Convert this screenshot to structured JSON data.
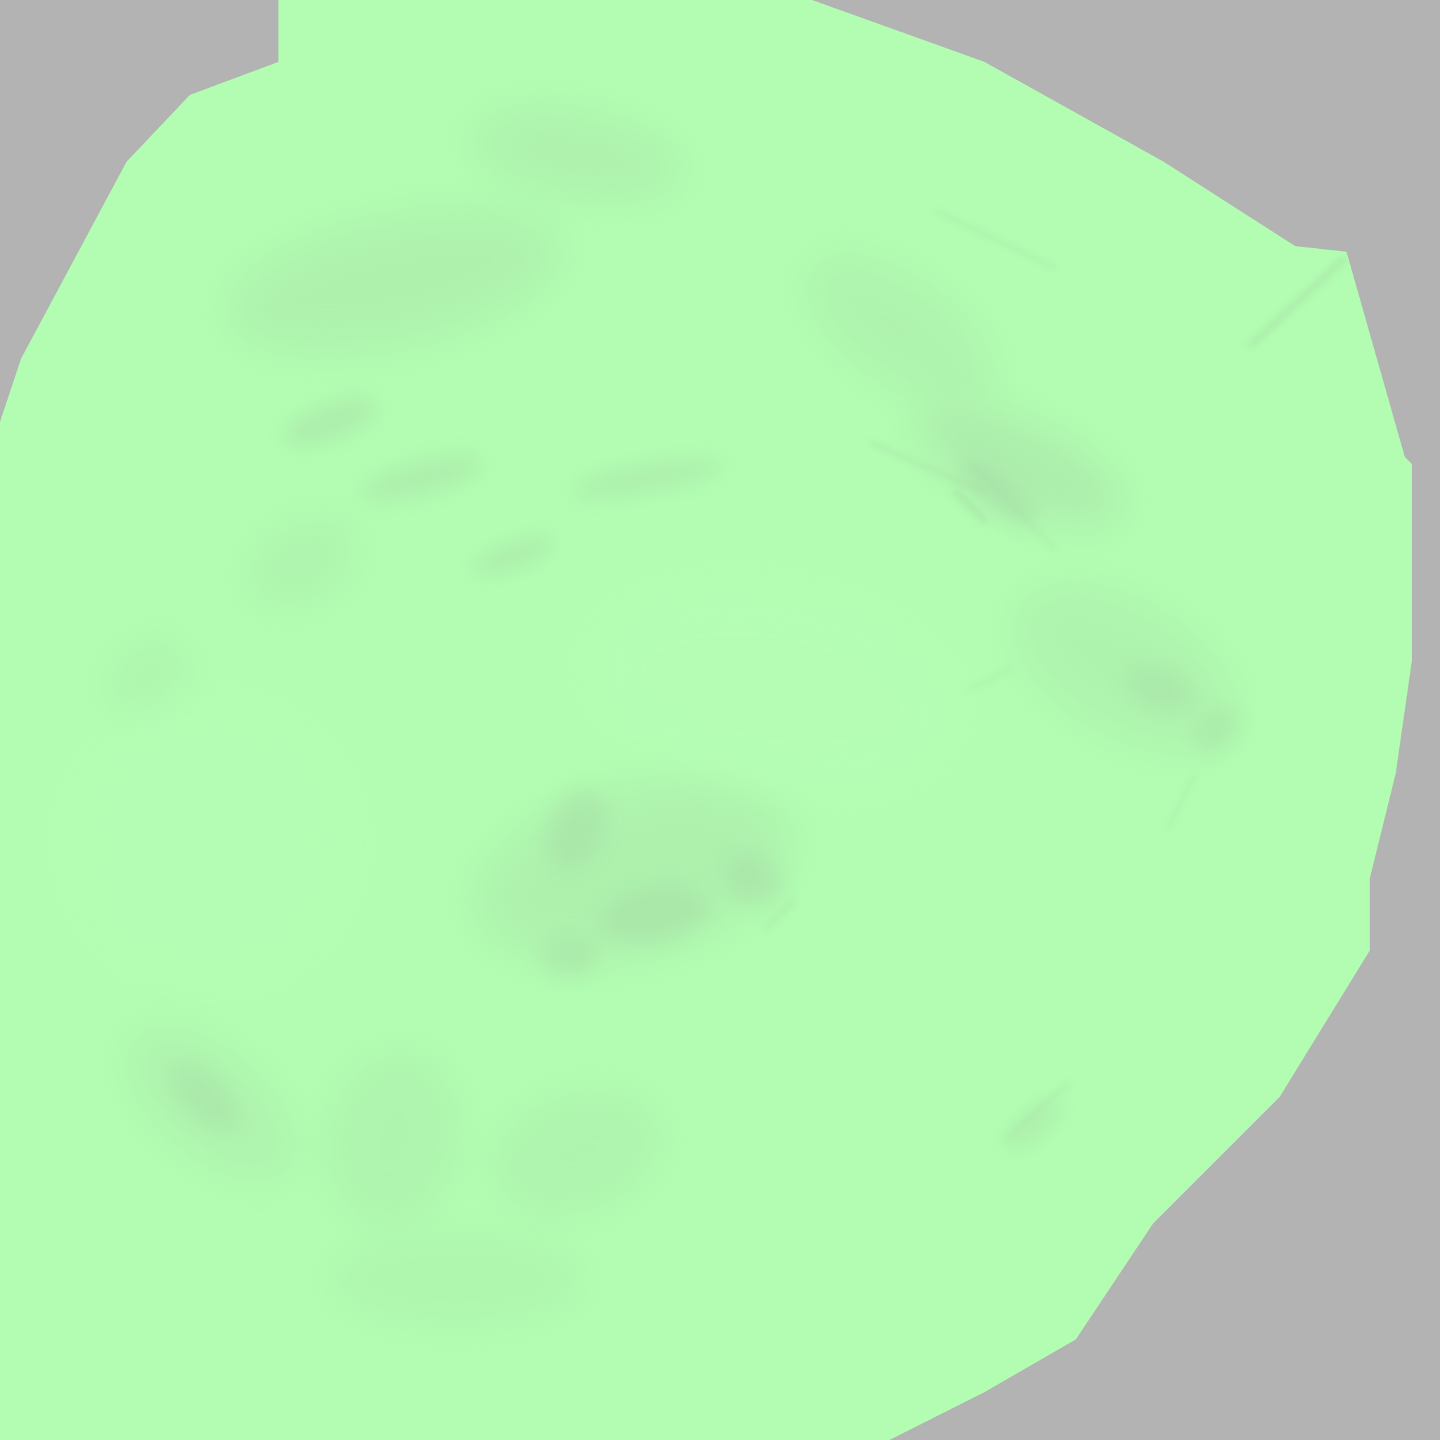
{
  "image": {
    "kind": "texture-map",
    "colors": {
      "background": "#b3b3b3",
      "region_fill": "#b2fdb2",
      "shade_dark": "#a6dba6",
      "shade_mid": "#aae8aa",
      "shade_light": "#bcffbc"
    }
  }
}
